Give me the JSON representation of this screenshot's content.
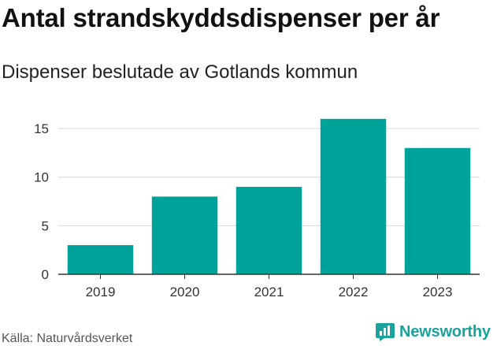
{
  "title": "Antal strandskyddsdispenser per år",
  "subtitle": "Dispenser beslutade av Gotlands kommun",
  "source": "Källa: Naturvårdsverket",
  "brand": "Newsworthy",
  "brand_icon": "newsworthy-logo-icon",
  "colors": {
    "bar": "#00a39a",
    "grid": "#d9d9d9",
    "axis": "#333333",
    "brand": "#1aa39b"
  },
  "chart_data": {
    "type": "bar",
    "title": "Antal strandskyddsdispenser per år",
    "subtitle": "Dispenser beslutade av Gotlands kommun",
    "xlabel": "",
    "ylabel": "",
    "categories": [
      "2019",
      "2020",
      "2021",
      "2022",
      "2023"
    ],
    "values": [
      3,
      8,
      9,
      16,
      13
    ],
    "yticks": [
      0,
      5,
      10,
      15
    ],
    "ylim": [
      0,
      17.2
    ],
    "grid": true,
    "legend": "none"
  }
}
